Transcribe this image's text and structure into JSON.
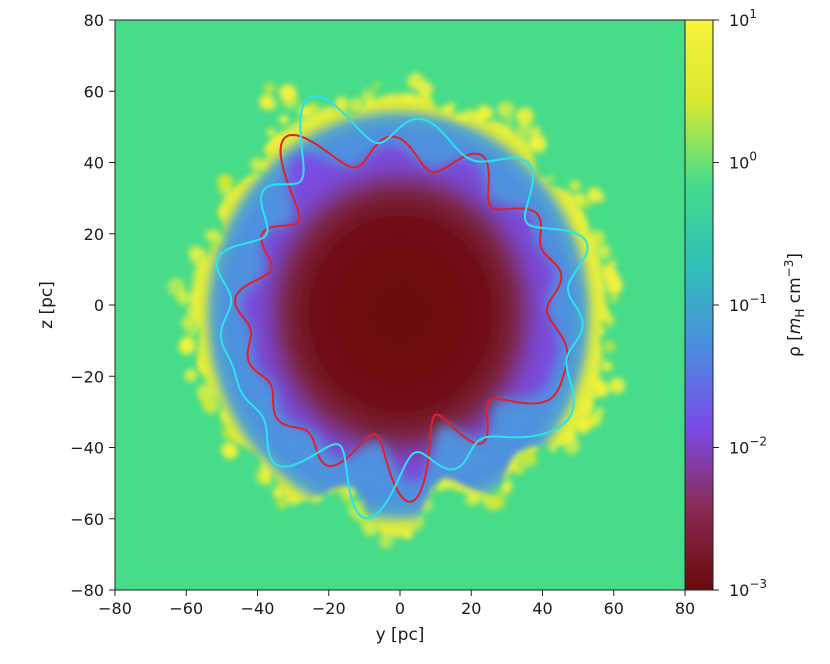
{
  "chart_data": {
    "type": "heatmap",
    "title": "",
    "xlabel": "y [pc]",
    "ylabel": "z [pc]",
    "xlim": [
      -80,
      80
    ],
    "ylim": [
      -80,
      80
    ],
    "xticks": [
      -80,
      -60,
      -40,
      -20,
      0,
      20,
      40,
      60,
      80
    ],
    "yticks": [
      -80,
      -60,
      -40,
      -20,
      0,
      20,
      40,
      60,
      80
    ],
    "xtick_labels": [
      "−80",
      "−60",
      "−40",
      "−20",
      "0",
      "20",
      "40",
      "60",
      "80"
    ],
    "ytick_labels": [
      "−80",
      "−60",
      "−40",
      "−20",
      "0",
      "20",
      "40",
      "60",
      "80"
    ],
    "grid": false,
    "colorbar": {
      "label": "ρ [m_H cm^-3]",
      "label_parts": {
        "rho": "ρ [",
        "m": "m",
        "h": "H",
        "unit": " cm",
        "exp": "−3",
        "close": "]"
      },
      "scale": "log",
      "range": [
        0.001,
        10
      ],
      "colormap": [
        "#6b0a0a",
        "#8a2a55",
        "#7a4be8",
        "#4a8ee0",
        "#2fc0b8",
        "#46dc8a",
        "#d7e930",
        "#f8f33a"
      ],
      "ticks": [
        {
          "value": 0.001,
          "base": "10",
          "exp": "−3"
        },
        {
          "value": 0.01,
          "base": "10",
          "exp": "−2"
        },
        {
          "value": 0.1,
          "base": "10",
          "exp": "−1"
        },
        {
          "value": 1,
          "base": "10",
          "exp": "0"
        },
        {
          "value": 10,
          "base": "10",
          "exp": "1"
        }
      ]
    },
    "field": {
      "background_density": 1.0,
      "cavity_center": [
        0,
        0
      ],
      "cavity_density": 0.001,
      "inner_radius_pc": 34,
      "outer_radius_pc": 43,
      "shell_radius_pc": [
        48,
        62
      ],
      "shell_density": 10
    },
    "contours": [
      {
        "name": "",
        "color": "#e0202a",
        "radius_pc": 44
      },
      {
        "name": "",
        "color": "#29e3f0",
        "radius_pc": 50
      }
    ]
  }
}
